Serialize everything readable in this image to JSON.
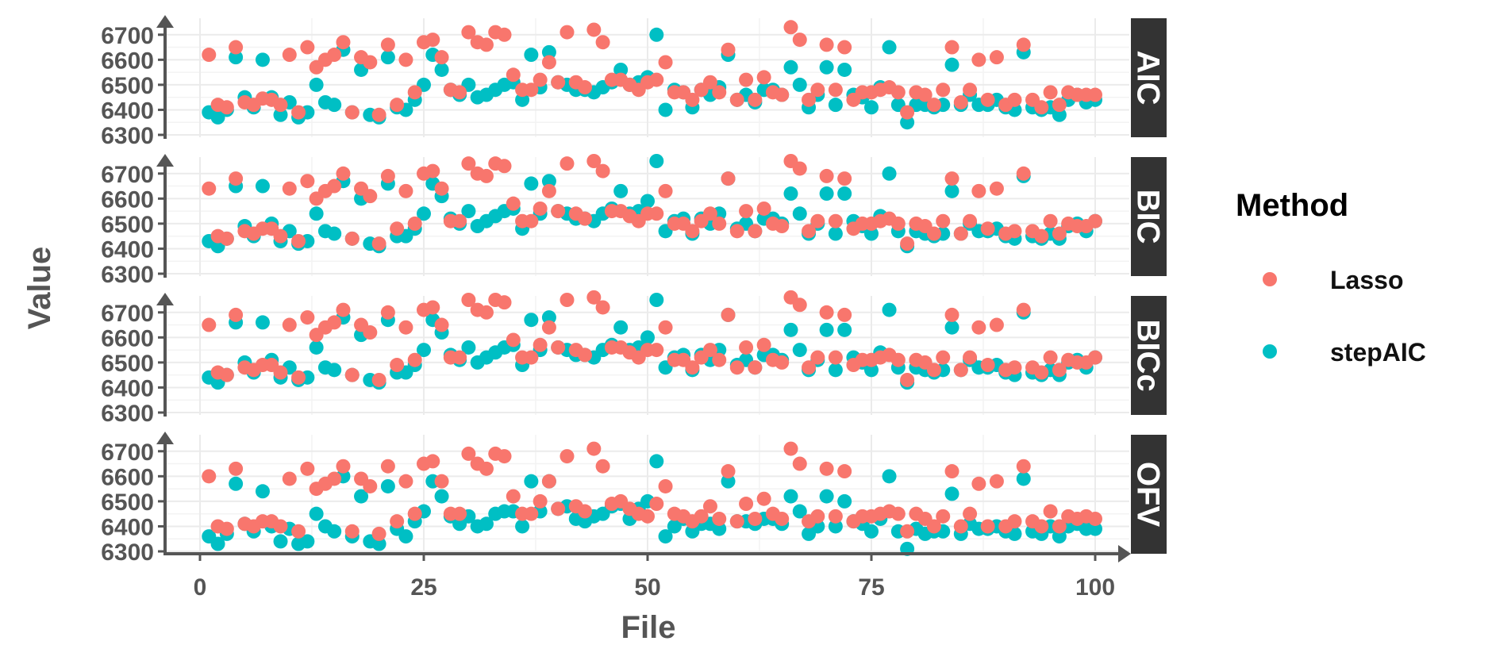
{
  "chart_data": {
    "type": "scatter",
    "xlabel": "File",
    "ylabel": "Value",
    "xlim": [
      0,
      100
    ],
    "ylim": [
      6300,
      6750
    ],
    "x_ticks": [
      "0",
      "25",
      "50",
      "75",
      "100"
    ],
    "y_ticks": [
      "6300",
      "6400",
      "6500",
      "6600",
      "6700"
    ],
    "legend": {
      "title": "Method",
      "position": "right"
    },
    "colors": {
      "Lasso": "#F8766D",
      "stepAIC": "#00BFC4",
      "strip": "#333333"
    },
    "series_names": [
      "Lasso",
      "stepAIC"
    ],
    "x": [
      1,
      2,
      3,
      4,
      5,
      6,
      7,
      8,
      9,
      10,
      11,
      12,
      13,
      14,
      15,
      16,
      17,
      18,
      19,
      20,
      21,
      22,
      23,
      24,
      25,
      26,
      27,
      28,
      29,
      30,
      31,
      32,
      33,
      34,
      35,
      36,
      37,
      38,
      39,
      40,
      41,
      42,
      43,
      44,
      45,
      46,
      47,
      48,
      49,
      50,
      51,
      52,
      53,
      54,
      55,
      56,
      57,
      58,
      59,
      60,
      61,
      62,
      63,
      64,
      65,
      66,
      67,
      68,
      69,
      70,
      71,
      72,
      73,
      74,
      75,
      76,
      77,
      78,
      79,
      80,
      81,
      82,
      83,
      84,
      85,
      86,
      87,
      88,
      89,
      90,
      91,
      92,
      93,
      94,
      95,
      96,
      97,
      98,
      99,
      100
    ],
    "panels": [
      {
        "label": "AIC",
        "series": [
          {
            "name": "Lasso",
            "values": [
              6620,
              6420,
              6410,
              6650,
              6430,
              6420,
              6445,
              6440,
              6420,
              6620,
              6390,
              6650,
              6570,
              6600,
              6620,
              6670,
              6390,
              6610,
              6590,
              6380,
              6660,
              6420,
              6600,
              6470,
              6670,
              6680,
              6610,
              6480,
              6470,
              6710,
              6670,
              6660,
              6710,
              6700,
              6540,
              6480,
              6480,
              6520,
              6590,
              6510,
              6710,
              6510,
              6490,
              6720,
              6670,
              6520,
              6520,
              6500,
              6480,
              6510,
              6520,
              6590,
              6470,
              6470,
              6440,
              6480,
              6510,
              6470,
              6640,
              6440,
              6520,
              6440,
              6530,
              6470,
              6460,
              6730,
              6680,
              6440,
              6480,
              6660,
              6480,
              6650,
              6440,
              6470,
              6470,
              6480,
              6490,
              6470,
              6390,
              6470,
              6460,
              6420,
              6480,
              6650,
              6430,
              6480,
              6600,
              6440,
              6610,
              6420,
              6440,
              6660,
              6440,
              6410,
              6470,
              6420,
              6470,
              6460,
              6460,
              6460
            ]
          },
          {
            "name": "stepAIC",
            "values": [
              6390,
              6370,
              6400,
              6610,
              6450,
              6410,
              6600,
              6450,
              6380,
              6430,
              6370,
              6390,
              6500,
              6430,
              6420,
              6640,
              6390,
              6560,
              6380,
              6370,
              6610,
              6410,
              6400,
              6440,
              6500,
              6620,
              6560,
              6480,
              6460,
              6500,
              6450,
              6460,
              6480,
              6500,
              6510,
              6440,
              6620,
              6490,
              6630,
              6510,
              6500,
              6480,
              6480,
              6470,
              6490,
              6510,
              6560,
              6500,
              6510,
              6530,
              6700,
              6400,
              6480,
              6470,
              6410,
              6480,
              6460,
              6490,
              6620,
              6440,
              6460,
              6430,
              6480,
              6480,
              6460,
              6570,
              6500,
              6410,
              6460,
              6570,
              6420,
              6560,
              6460,
              6450,
              6410,
              6490,
              6650,
              6420,
              6350,
              6420,
              6420,
              6410,
              6420,
              6580,
              6420,
              6460,
              6420,
              6420,
              6440,
              6410,
              6400,
              6630,
              6410,
              6400,
              6410,
              6380,
              6440,
              6460,
              6430,
              6440
            ]
          }
        ]
      },
      {
        "label": "BIC",
        "series": [
          {
            "name": "Lasso",
            "values": [
              6640,
              6450,
              6440,
              6680,
              6470,
              6460,
              6480,
              6480,
              6450,
              6640,
              6430,
              6670,
              6600,
              6630,
              6650,
              6700,
              6440,
              6640,
              6610,
              6420,
              6690,
              6480,
              6630,
              6500,
              6700,
              6710,
              6640,
              6510,
              6510,
              6740,
              6700,
              6690,
              6740,
              6730,
              6580,
              6510,
              6510,
              6560,
              6630,
              6550,
              6740,
              6540,
              6520,
              6750,
              6710,
              6550,
              6550,
              6530,
              6510,
              6540,
              6540,
              6630,
              6500,
              6500,
              6470,
              6510,
              6540,
              6500,
              6680,
              6470,
              6550,
              6470,
              6560,
              6500,
              6490,
              6750,
              6720,
              6470,
              6510,
              6690,
              6510,
              6680,
              6480,
              6500,
              6500,
              6510,
              6520,
              6500,
              6420,
              6500,
              6490,
              6460,
              6510,
              6680,
              6460,
              6510,
              6630,
              6480,
              6640,
              6460,
              6470,
              6700,
              6470,
              6450,
              6510,
              6460,
              6500,
              6490,
              6490,
              6510
            ]
          },
          {
            "name": "stepAIC",
            "values": [
              6430,
              6410,
              6440,
              6650,
              6490,
              6450,
              6650,
              6500,
              6430,
              6470,
              6420,
              6430,
              6540,
              6470,
              6460,
              6670,
              6440,
              6600,
              6420,
              6410,
              6660,
              6450,
              6450,
              6480,
              6540,
              6660,
              6610,
              6520,
              6500,
              6550,
              6490,
              6510,
              6530,
              6550,
              6560,
              6480,
              6660,
              6540,
              6670,
              6550,
              6540,
              6520,
              6520,
              6510,
              6540,
              6560,
              6630,
              6540,
              6550,
              6590,
              6750,
              6470,
              6510,
              6520,
              6460,
              6520,
              6500,
              6540,
              6680,
              6480,
              6500,
              6470,
              6520,
              6520,
              6500,
              6620,
              6540,
              6460,
              6500,
              6620,
              6460,
              6620,
              6510,
              6490,
              6460,
              6530,
              6700,
              6470,
              6410,
              6470,
              6460,
              6450,
              6460,
              6630,
              6460,
              6500,
              6470,
              6470,
              6480,
              6450,
              6440,
              6690,
              6450,
              6440,
              6460,
              6440,
              6490,
              6500,
              6470,
              6510
            ]
          }
        ]
      },
      {
        "label": "BICc",
        "series": [
          {
            "name": "Lasso",
            "values": [
              6650,
              6460,
              6450,
              6690,
              6480,
              6470,
              6490,
              6490,
              6460,
              6650,
              6440,
              6680,
              6610,
              6640,
              6660,
              6710,
              6450,
              6650,
              6620,
              6430,
              6700,
              6490,
              6640,
              6510,
              6710,
              6720,
              6650,
              6520,
              6520,
              6750,
              6710,
              6700,
              6750,
              6740,
              6590,
              6520,
              6520,
              6570,
              6640,
              6560,
              6750,
              6550,
              6530,
              6760,
              6720,
              6560,
              6560,
              6540,
              6520,
              6550,
              6550,
              6640,
              6510,
              6510,
              6480,
              6520,
              6550,
              6510,
              6690,
              6480,
              6560,
              6480,
              6570,
              6510,
              6500,
              6760,
              6730,
              6480,
              6520,
              6700,
              6520,
              6690,
              6490,
              6510,
              6510,
              6520,
              6530,
              6510,
              6430,
              6510,
              6500,
              6470,
              6520,
              6690,
              6470,
              6520,
              6640,
              6490,
              6650,
              6470,
              6480,
              6710,
              6480,
              6460,
              6520,
              6470,
              6510,
              6500,
              6500,
              6520
            ]
          },
          {
            "name": "stepAIC",
            "values": [
              6440,
              6420,
              6450,
              6660,
              6500,
              6460,
              6660,
              6510,
              6440,
              6480,
              6430,
              6440,
              6560,
              6480,
              6470,
              6680,
              6450,
              6610,
              6430,
              6420,
              6670,
              6460,
              6460,
              6490,
              6550,
              6670,
              6620,
              6530,
              6510,
              6560,
              6500,
              6520,
              6540,
              6560,
              6570,
              6490,
              6670,
              6550,
              6680,
              6560,
              6550,
              6530,
              6530,
              6520,
              6550,
              6570,
              6640,
              6550,
              6560,
              6600,
              6750,
              6480,
              6520,
              6530,
              6470,
              6530,
              6510,
              6550,
              6690,
              6490,
              6510,
              6480,
              6530,
              6530,
              6510,
              6630,
              6550,
              6470,
              6510,
              6630,
              6470,
              6630,
              6520,
              6500,
              6470,
              6540,
              6710,
              6480,
              6420,
              6480,
              6470,
              6460,
              6470,
              6640,
              6470,
              6510,
              6480,
              6480,
              6490,
              6460,
              6450,
              6700,
              6460,
              6450,
              6470,
              6450,
              6500,
              6510,
              6480,
              6520
            ]
          }
        ]
      },
      {
        "label": "OFV",
        "series": [
          {
            "name": "Lasso",
            "values": [
              6600,
              6400,
              6390,
              6630,
              6410,
              6400,
              6420,
              6420,
              6400,
              6590,
              6380,
              6630,
              6550,
              6570,
              6590,
              6640,
              6380,
              6590,
              6560,
              6370,
              6640,
              6420,
              6580,
              6450,
              6650,
              6660,
              6580,
              6450,
              6450,
              6690,
              6650,
              6630,
              6690,
              6680,
              6520,
              6450,
              6450,
              6500,
              6580,
              6470,
              6680,
              6480,
              6460,
              6710,
              6640,
              6490,
              6500,
              6470,
              6450,
              6440,
              6490,
              6560,
              6450,
              6440,
              6420,
              6440,
              6480,
              6430,
              6620,
              6420,
              6490,
              6430,
              6510,
              6450,
              6430,
              6710,
              6650,
              6420,
              6440,
              6630,
              6440,
              6620,
              6420,
              6440,
              6440,
              6450,
              6460,
              6450,
              6380,
              6450,
              6430,
              6400,
              6440,
              6620,
              6400,
              6450,
              6570,
              6400,
              6580,
              6400,
              6420,
              6640,
              6420,
              6400,
              6460,
              6400,
              6440,
              6430,
              6440,
              6430
            ]
          },
          {
            "name": "stepAIC",
            "values": [
              6360,
              6330,
              6370,
              6570,
              6410,
              6380,
              6540,
              6400,
              6340,
              6390,
              6330,
              6340,
              6450,
              6400,
              6380,
              6600,
              6360,
              6520,
              6340,
              6330,
              6560,
              6390,
              6360,
              6420,
              6460,
              6580,
              6520,
              6440,
              6410,
              6440,
              6400,
              6410,
              6450,
              6460,
              6460,
              6400,
              6580,
              6460,
              6580,
              6470,
              6480,
              6430,
              6420,
              6440,
              6450,
              6480,
              6490,
              6430,
              6470,
              6500,
              6660,
              6360,
              6400,
              6430,
              6380,
              6410,
              6410,
              6390,
              6580,
              6420,
              6420,
              6410,
              6430,
              6430,
              6410,
              6520,
              6460,
              6370,
              6400,
              6520,
              6400,
              6500,
              6420,
              6410,
              6380,
              6430,
              6600,
              6380,
              6310,
              6390,
              6370,
              6380,
              6380,
              6530,
              6370,
              6410,
              6390,
              6390,
              6400,
              6380,
              6370,
              6590,
              6380,
              6370,
              6400,
              6360,
              6400,
              6410,
              6390,
              6390
            ]
          }
        ]
      }
    ]
  }
}
